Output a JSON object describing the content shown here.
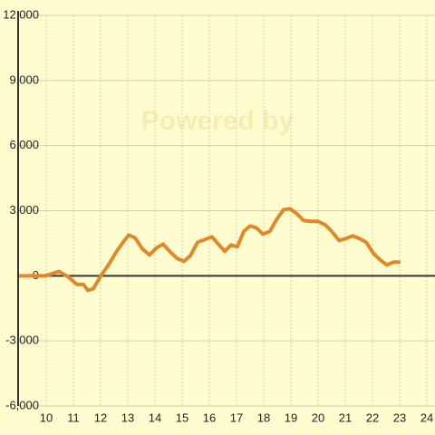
{
  "chart_data": {
    "type": "line",
    "watermark": "Powered by",
    "x": [
      9,
      9.97,
      10.47,
      10.8,
      11.13,
      11.37,
      11.53,
      11.73,
      12.03,
      12.27,
      12.57,
      12.83,
      13.03,
      13.27,
      13.53,
      13.8,
      14.07,
      14.3,
      14.57,
      14.83,
      15.07,
      15.3,
      15.57,
      15.83,
      16.1,
      16.3,
      16.57,
      16.8,
      17.03,
      17.27,
      17.5,
      17.73,
      17.97,
      18.23,
      18.47,
      18.73,
      18.97,
      19.2,
      19.47,
      19.73,
      20.0,
      20.27,
      20.5,
      20.77,
      21.0,
      21.27,
      21.53,
      21.77,
      22.03,
      22.27,
      22.53,
      22.77,
      23.03
    ],
    "series": [
      {
        "color": "#e0892a",
        "values": [
          0,
          0,
          200,
          -40,
          -400,
          -400,
          -670,
          -600,
          40,
          460,
          1090,
          1550,
          1880,
          1750,
          1250,
          960,
          1300,
          1460,
          1090,
          790,
          670,
          920,
          1550,
          1670,
          1800,
          1500,
          1130,
          1420,
          1340,
          2050,
          2300,
          2210,
          1920,
          2050,
          2590,
          3050,
          3090,
          2880,
          2550,
          2510,
          2510,
          2340,
          2050,
          1630,
          1710,
          1840,
          1710,
          1550,
          1040,
          750,
          500,
          630,
          630
        ]
      }
    ],
    "xlim": [
      9,
      24.3
    ],
    "xticks": [
      10,
      11,
      12,
      13,
      14,
      15,
      16,
      17,
      18,
      19,
      20,
      21,
      22,
      23,
      24
    ],
    "ylim": [
      -6000,
      12000
    ],
    "yticks": [
      {
        "value": -6000,
        "label": "-6,000"
      },
      {
        "value": -3000,
        "label": "-3,000"
      },
      0,
      {
        "value": 3000,
        "label": "3,000"
      },
      {
        "value": 6000,
        "label": "6,000"
      },
      {
        "value": 9000,
        "label": "9,000"
      },
      {
        "value": 12000,
        "label": "12,000"
      }
    ],
    "grid": true
  }
}
